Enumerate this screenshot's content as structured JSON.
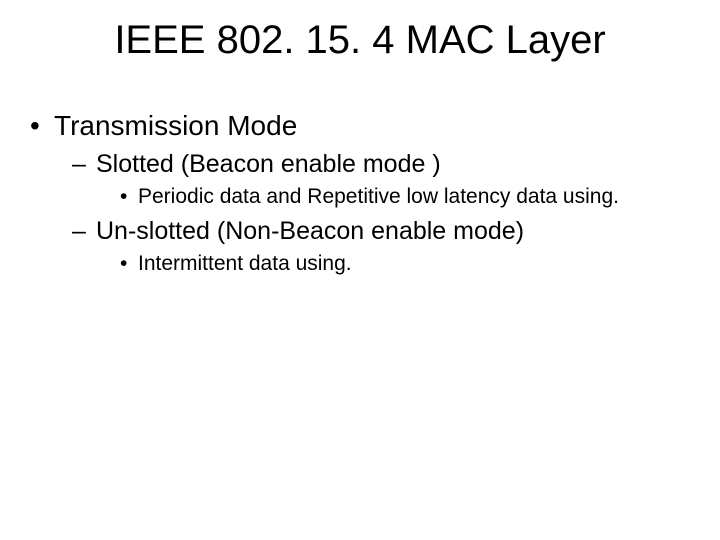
{
  "slide": {
    "title": "IEEE 802. 15. 4 MAC Layer",
    "bullets": {
      "l1_0": "Transmission Mode",
      "l2_0": "Slotted (Beacon enable mode )",
      "l3_0": "Periodic data and Repetitive low latency data using.",
      "l2_1": "Un-slotted (Non-Beacon enable mode)",
      "l3_1": "Intermittent data using."
    }
  },
  "style": {
    "background_color": "#ffffff",
    "text_color": "#000000",
    "font_family": "Arial",
    "title_fontsize": 40,
    "l1_fontsize": 28,
    "l2_fontsize": 25,
    "l3_fontsize": 21,
    "l1_marker": "•",
    "l2_marker": "–",
    "l3_marker": "•"
  }
}
